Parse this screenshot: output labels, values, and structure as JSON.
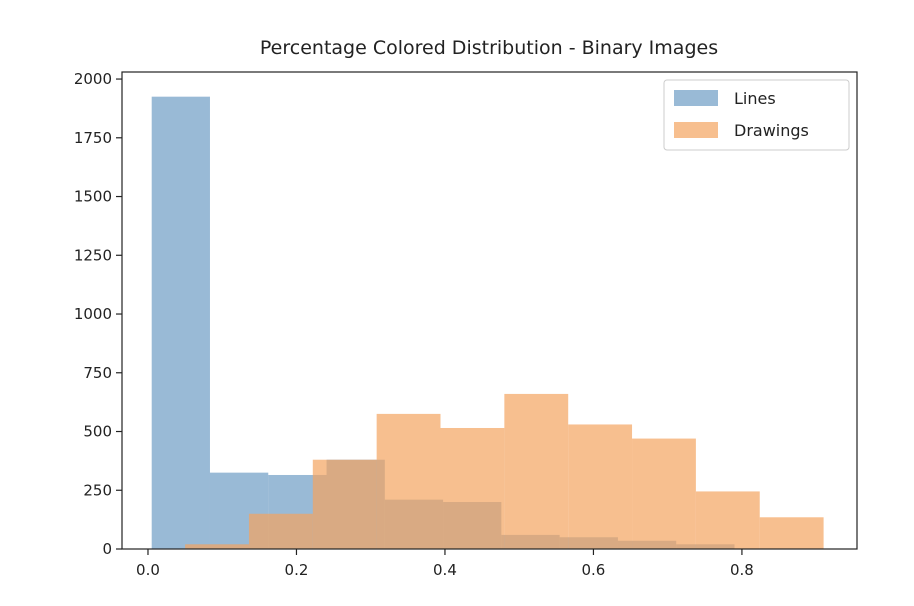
{
  "chart_data": {
    "type": "histogram",
    "title": "Percentage Colored Distribution - Binary Images",
    "xlabel": "",
    "ylabel": "",
    "xlim": [
      -0.035,
      0.955
    ],
    "ylim": [
      0,
      2030
    ],
    "xticks": [
      0.0,
      0.2,
      0.4,
      0.6,
      0.8
    ],
    "xtick_labels": [
      "0.0",
      "0.2",
      "0.4",
      "0.6",
      "0.8"
    ],
    "yticks": [
      0,
      250,
      500,
      750,
      1000,
      1250,
      1500,
      1750,
      2000
    ],
    "ytick_labels": [
      "0",
      "250",
      "500",
      "750",
      "1000",
      "1250",
      "1500",
      "1750",
      "2000"
    ],
    "grid": false,
    "legend_position": "top-right",
    "series": [
      {
        "name": "Lines",
        "color": "#4682b4",
        "opacity": 0.55,
        "bin_edges": [
          0.005,
          0.0835,
          0.162,
          0.2405,
          0.319,
          0.3975,
          0.476,
          0.5545,
          0.633,
          0.7115,
          0.79
        ],
        "counts": [
          1925,
          325,
          315,
          380,
          210,
          200,
          60,
          50,
          35,
          20
        ]
      },
      {
        "name": "Drawings",
        "color": "#f4a460",
        "opacity": 0.7,
        "bin_edges": [
          0.05,
          0.136,
          0.222,
          0.308,
          0.394,
          0.48,
          0.566,
          0.652,
          0.738,
          0.824,
          0.91
        ],
        "counts": [
          20,
          150,
          380,
          575,
          515,
          660,
          530,
          470,
          245,
          135
        ]
      }
    ]
  }
}
